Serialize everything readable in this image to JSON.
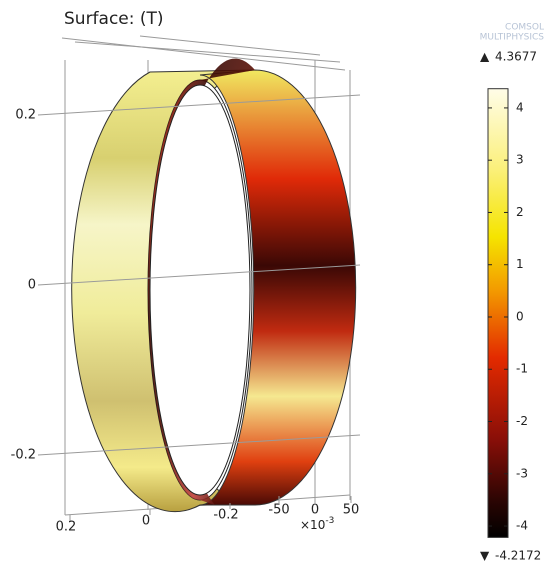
{
  "chart_data": {
    "type": "surface",
    "title": "Surface: (T)",
    "logo": [
      "COMSOL",
      "MULTIPHYSICS"
    ],
    "zticks": [
      0.2,
      0,
      -0.2
    ],
    "xticks": [
      0.2,
      0,
      -0.2
    ],
    "yticks": [
      -50,
      0,
      50
    ],
    "y_scale_label": {
      "base": "×10",
      "exponent": "-3"
    },
    "colorbar": {
      "lim": [
        -4.2172,
        4.3677
      ],
      "ticks": [
        4,
        3,
        2,
        1,
        0,
        -1,
        -2,
        -3,
        -4
      ],
      "max": 4.3677,
      "min": -4.2172
    }
  }
}
